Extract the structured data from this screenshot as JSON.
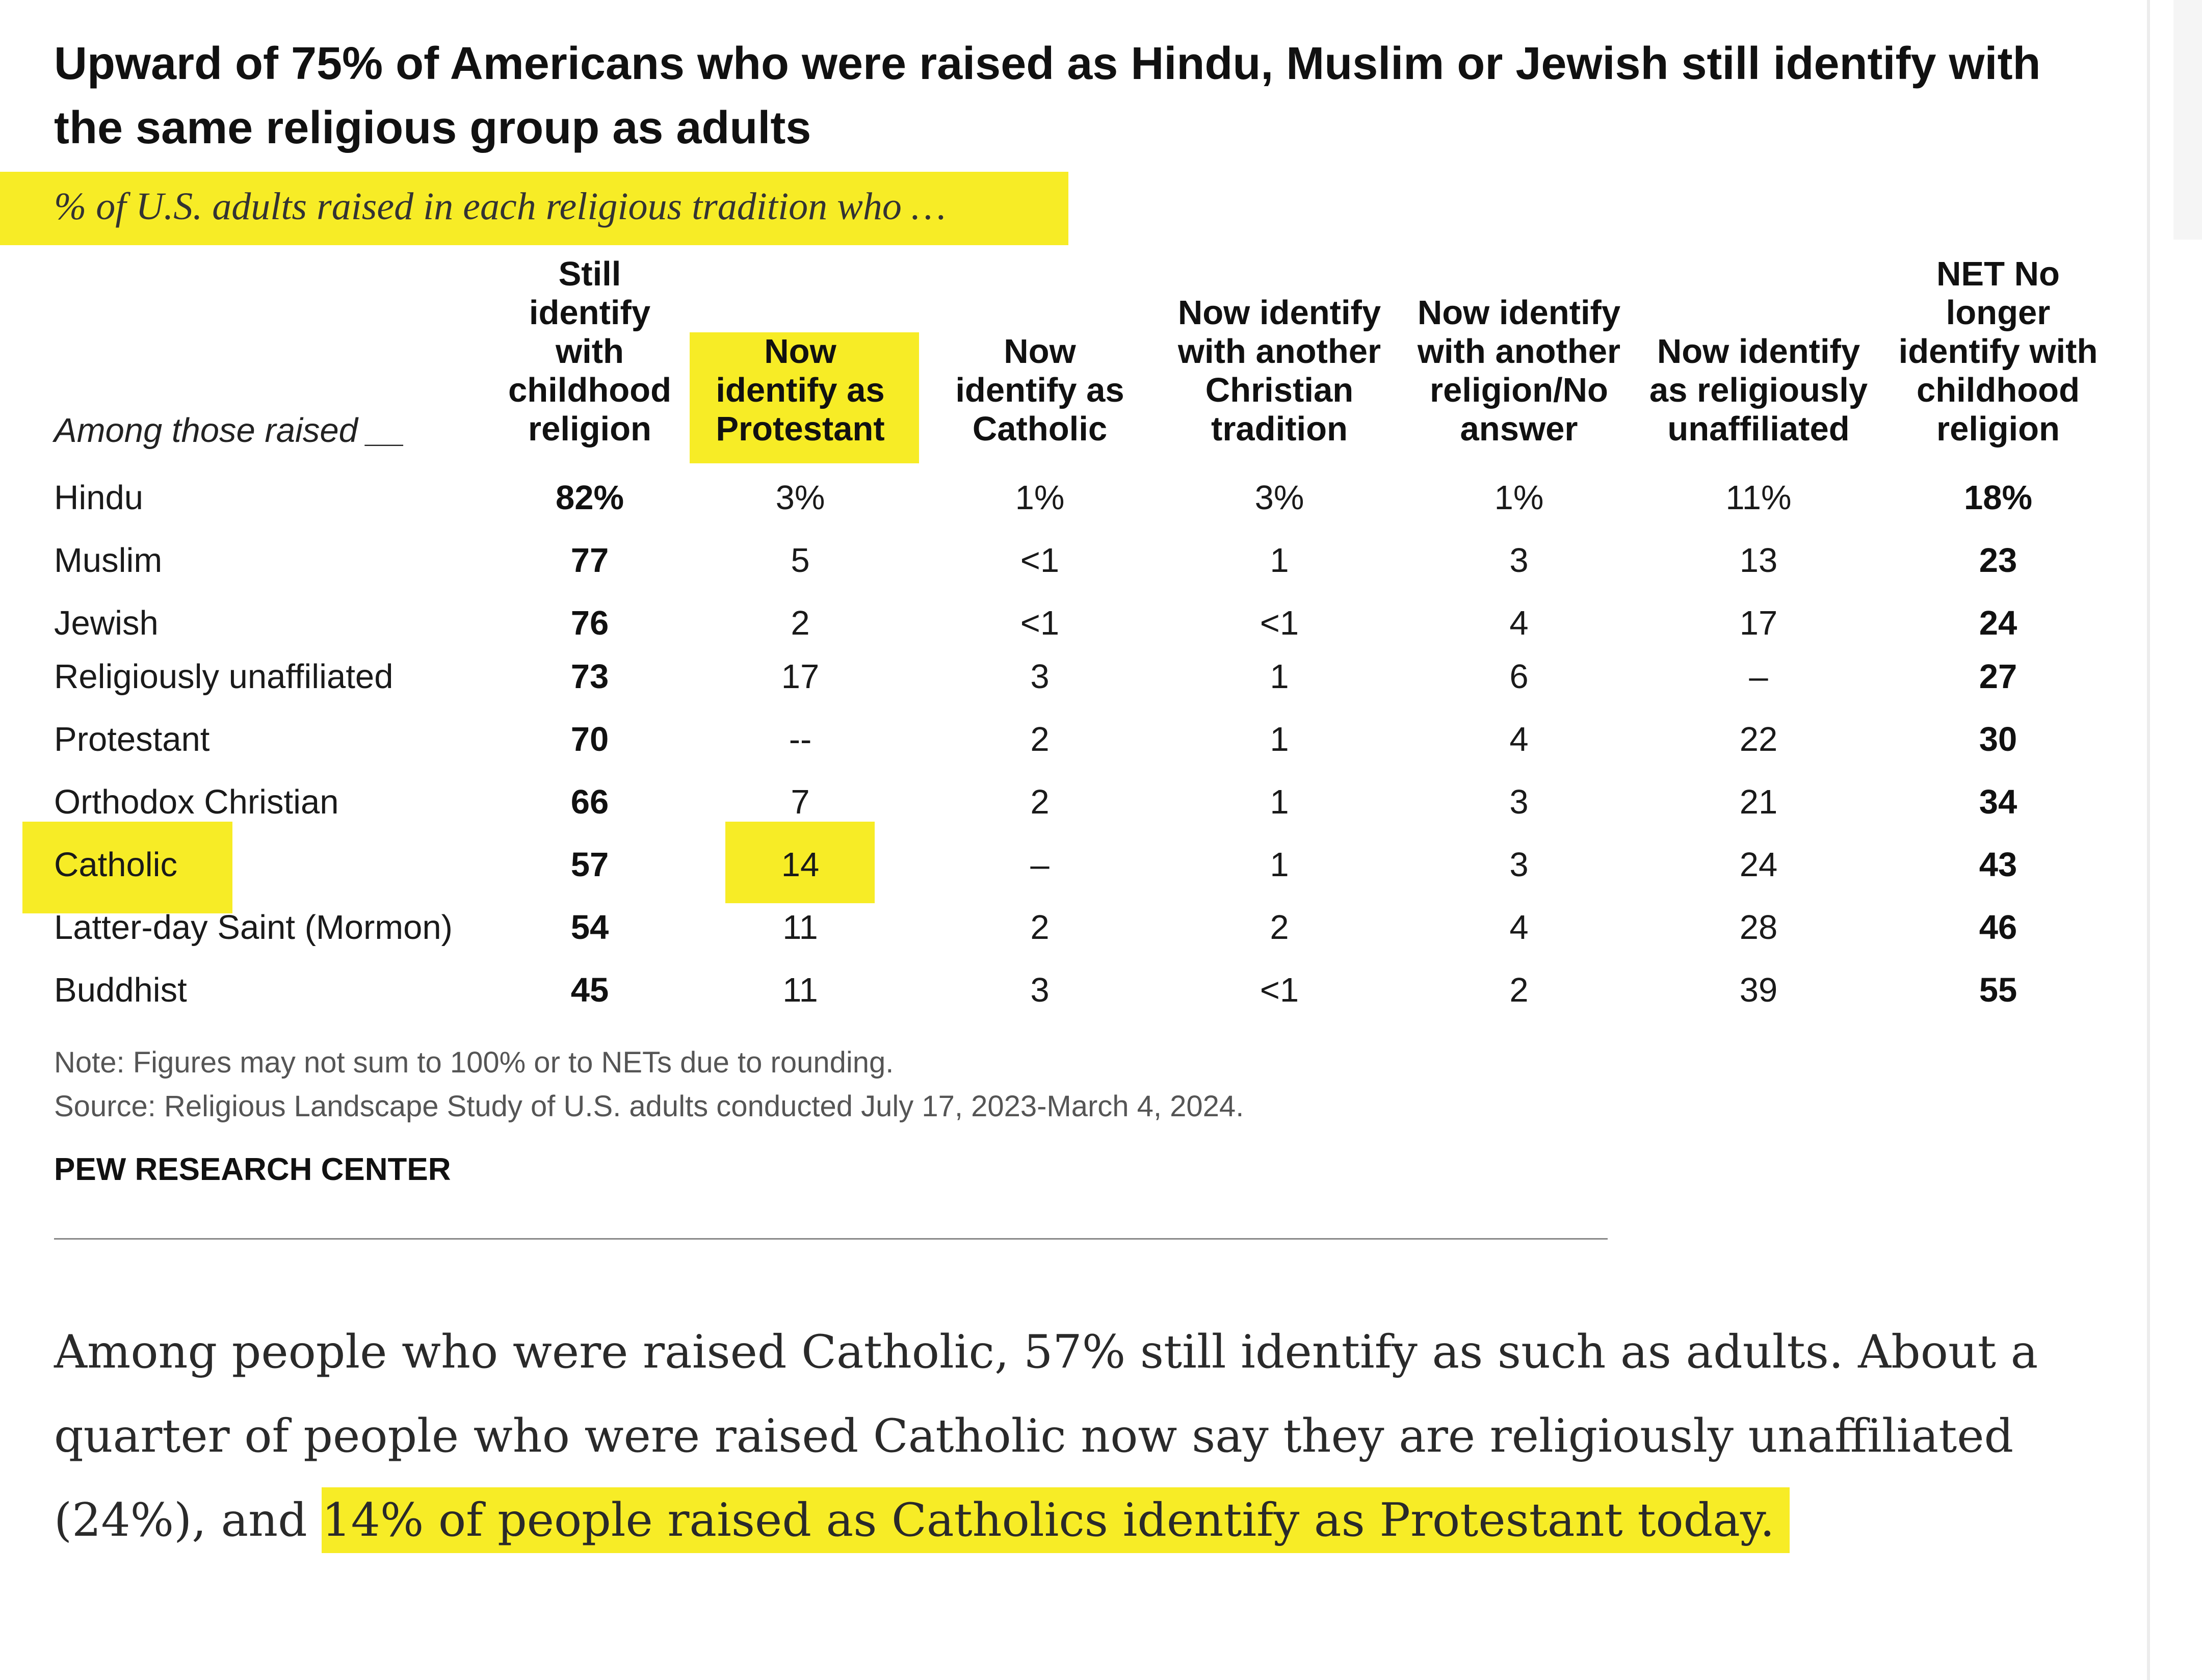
{
  "title": "Upward of 75% of Americans who were raised as Hindu, Muslim or Jewish still identify with the same religious group as adults",
  "subtitle": "% of U.S. adults raised in each religious tradition who …",
  "table": {
    "row_header": "Among those raised __",
    "columns": [
      [
        "Still",
        "identify",
        "with",
        "childhood",
        "religion"
      ],
      [
        "Now",
        "identify as",
        "Protestant"
      ],
      [
        "Now",
        "identify as",
        "Catholic"
      ],
      [
        "Now identify",
        "with another",
        "Christian",
        "tradition"
      ],
      [
        "Now identify",
        "with another",
        "religion/No",
        "answer"
      ],
      [
        "Now identify",
        "as religiously",
        "unaffiliated"
      ],
      [
        "NET No",
        "longer",
        "identify with",
        "childhood",
        "religion"
      ]
    ],
    "rows": [
      {
        "label": "Hindu",
        "values": [
          "82%",
          "3%",
          "1%",
          "3%",
          "1%",
          "11%",
          "18%"
        ]
      },
      {
        "label": "Muslim",
        "values": [
          "77",
          "5",
          "<1",
          "1",
          "3",
          "13",
          "23"
        ]
      },
      {
        "label": "Jewish",
        "values": [
          "76",
          "2",
          "<1",
          "<1",
          "4",
          "17",
          "24"
        ]
      },
      {
        "label": "Religiously unaffiliated",
        "values": [
          "73",
          "17",
          "3",
          "1",
          "6",
          "–",
          "27"
        ]
      },
      {
        "label": "Protestant",
        "values": [
          "70",
          "--",
          "2",
          "1",
          "4",
          "22",
          "30"
        ]
      },
      {
        "label": "Orthodox Christian",
        "values": [
          "66",
          "7",
          "2",
          "1",
          "3",
          "21",
          "34"
        ]
      },
      {
        "label": "Catholic",
        "values": [
          "57",
          "14",
          "–",
          "1",
          "3",
          "24",
          "43"
        ]
      },
      {
        "label": "Latter-day Saint (Mormon)",
        "values": [
          "54",
          "11",
          "2",
          "2",
          "4",
          "28",
          "46"
        ]
      },
      {
        "label": "Buddhist",
        "values": [
          "45",
          "11",
          "3",
          "<1",
          "2",
          "39",
          "55"
        ]
      }
    ]
  },
  "note": "Note: Figures may not sum to 100% or to NETs due to rounding.",
  "source": "Source: Religious Landscape Study of U.S. adults conducted July 17, 2023-March 4, 2024.",
  "brand": "PEW RESEARCH CENTER",
  "paragraph": {
    "part1": "Among people who were raised Catholic, 57% still identify as such as adults. About a quarter of people who were raised Catholic now say they are religiously unaffiliated (24%), and ",
    "highlight": "14% of people raised as Catholics identify as Protestant today."
  },
  "highlight_color": "#f7ec26"
}
